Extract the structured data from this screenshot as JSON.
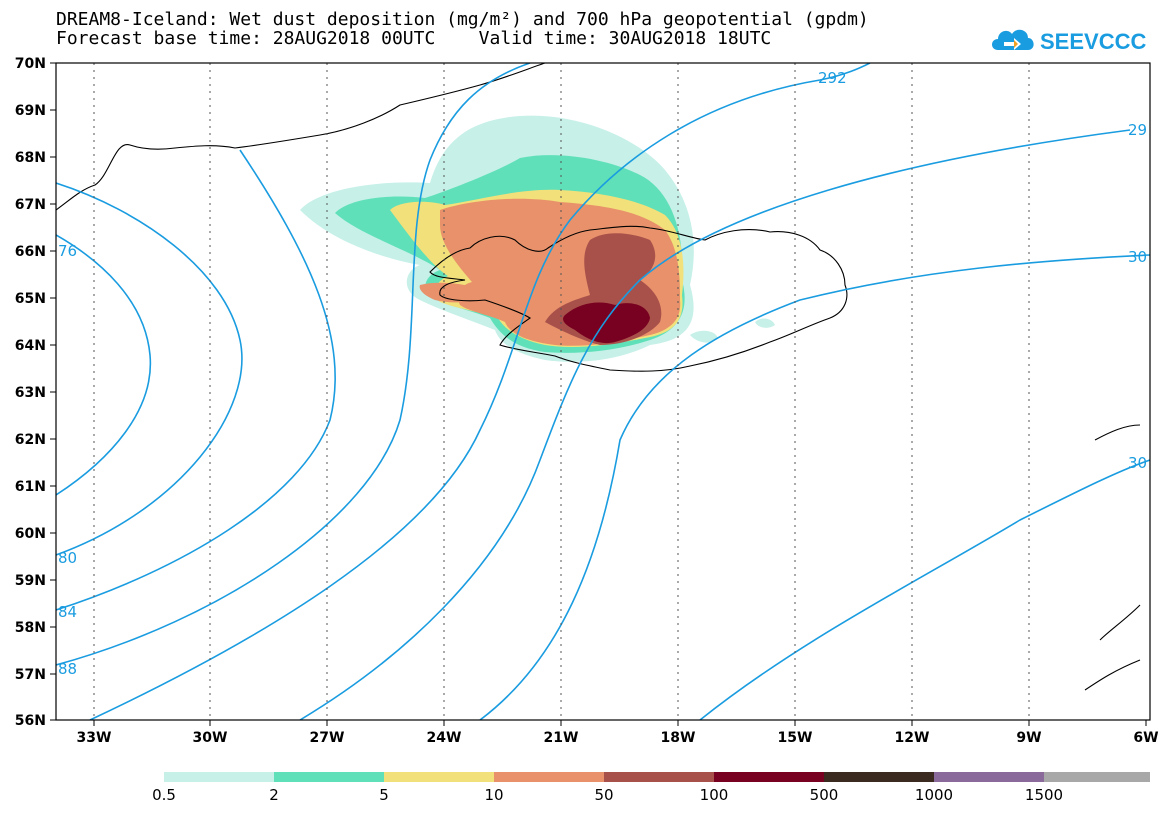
{
  "header": {
    "title_line1": "DREAM8-Iceland: Wet dust deposition (mg/m²) and 700 hPa geopotential (gpdm)",
    "title_line2": "Forecast base time: 28AUG2018 00UTC    Valid time: 30AUG2018 18UTC"
  },
  "logo": {
    "text": "SEEVCCC",
    "icon": "cloud-arrow-icon",
    "color": "#1a9ce0"
  },
  "map": {
    "lat_labels": [
      "70N",
      "69N",
      "68N",
      "67N",
      "66N",
      "65N",
      "64N",
      "63N",
      "62N",
      "61N",
      "60N",
      "59N",
      "58N",
      "57N",
      "56N"
    ],
    "lon_labels": [
      "33W",
      "30W",
      "27W",
      "24W",
      "21W",
      "18W",
      "15W",
      "12W",
      "9W",
      "6W"
    ],
    "contour_color": "#1a9ce0",
    "contour_labels": [
      "292",
      "29",
      "76",
      "30",
      "30",
      "80",
      "84",
      "88"
    ]
  },
  "colorbar": {
    "colors": [
      "#c6f0e8",
      "#5fe0b8",
      "#f2e07a",
      "#e8916a",
      "#a8504a",
      "#780020",
      "#3a2a20",
      "#8a6a9a",
      "#a8a8a8"
    ],
    "labels": [
      "0.5",
      "2",
      "5",
      "10",
      "50",
      "100",
      "500",
      "1000",
      "1500"
    ]
  }
}
